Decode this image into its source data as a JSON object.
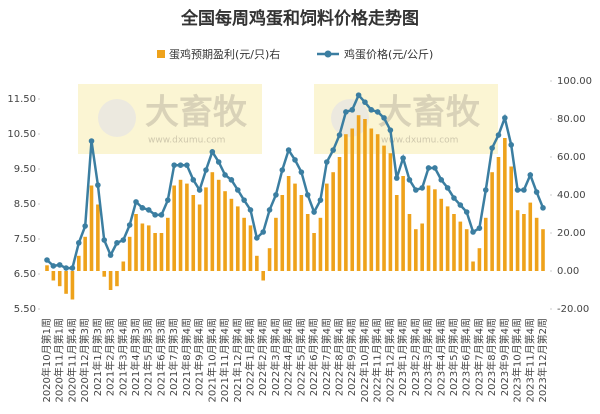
{
  "chart_data": {
    "type": "combo",
    "title": "全国每周鸡蛋和饲料价格走势图",
    "watermark": "大畜牧",
    "watermark_url": "www.dxumu.com",
    "categories": [
      "2020年10月第1周",
      null,
      "2020年11月第1周",
      null,
      "2020年11月第4周",
      null,
      "2020年12月第3周",
      null,
      "2021年1月第3周",
      null,
      "2021年2月第3周",
      null,
      "2021年3月第4周",
      null,
      "2021年4月第3周",
      null,
      "2021年5月第3周",
      null,
      "2021年6月第3周",
      null,
      "2021年7月第3周",
      null,
      "2021年8月第4周",
      null,
      "2021年9月第4周",
      null,
      "2021年10月第4周",
      null,
      "2021年11月第4周",
      null,
      "2021年12月第4周",
      null,
      "2022年1月第4周",
      null,
      "2022年2月第4周",
      null,
      "2022年3月第4周",
      null,
      "2022年4月第4周",
      null,
      "2022年5月第4周",
      null,
      "2022年6月第4周",
      null,
      "2022年7月第4周",
      null,
      "2022年8月第4周",
      null,
      "2022年9月第4周",
      null,
      "2022年10月第4周",
      null,
      "2022年11月第4周",
      null,
      "2022年12月第4周",
      null,
      "2023年1月第4周",
      null,
      "2023年2月第4周",
      null,
      "2023年3月第4周",
      null,
      "2023年4月第4周",
      null,
      "2023年5月第4周",
      null,
      "2023年6月第4周",
      null,
      "2023年7月第4周",
      null,
      "2023年8月第4周",
      null,
      "2023年9月第4周",
      null,
      "2023年10月第4周",
      null,
      "2023年11月第4周",
      null,
      "2023年12月第2周"
    ],
    "series": [
      {
        "name": "蛋鸡预期盈利(元/只)右",
        "type": "bar",
        "axis": "y2",
        "color": "#eea21b",
        "values": [
          3,
          -5,
          -8,
          -12,
          -15,
          8,
          18,
          45,
          35,
          -3,
          -10,
          -8,
          5,
          18,
          30,
          25,
          24,
          20,
          20,
          28,
          45,
          48,
          46,
          40,
          35,
          44,
          52,
          48,
          42,
          38,
          34,
          28,
          24,
          8,
          -5,
          12,
          28,
          40,
          50,
          46,
          40,
          30,
          20,
          28,
          46,
          52,
          60,
          72,
          75,
          82,
          80,
          75,
          72,
          66,
          62,
          40,
          50,
          30,
          22,
          25,
          45,
          43,
          38,
          34,
          30,
          26,
          22,
          5,
          12,
          28,
          52,
          60,
          70,
          55,
          32,
          30,
          36,
          28,
          22
        ]
      },
      {
        "name": "鸡蛋价格(元/公斤)",
        "type": "line",
        "axis": "y",
        "color": "#3b7ea1",
        "values": [
          6.9,
          6.73,
          6.76,
          6.67,
          6.67,
          7.39,
          7.87,
          10.3,
          9.04,
          7.47,
          7.04,
          7.39,
          7.47,
          7.9,
          8.56,
          8.39,
          8.33,
          8.19,
          8.19,
          8.61,
          9.61,
          9.61,
          9.61,
          9.19,
          8.9,
          9.47,
          9.99,
          9.7,
          9.33,
          9.19,
          8.9,
          8.61,
          8.33,
          7.53,
          7.7,
          8.33,
          8.76,
          9.47,
          10.04,
          9.76,
          9.41,
          8.76,
          8.27,
          8.61,
          9.7,
          10.04,
          10.47,
          11.13,
          11.19,
          11.61,
          11.41,
          11.19,
          11.13,
          10.96,
          10.61,
          9.24,
          9.81,
          9.19,
          8.9,
          8.96,
          9.53,
          9.53,
          9.19,
          8.96,
          8.67,
          8.47,
          8.27,
          7.7,
          7.81,
          8.9,
          10.1,
          10.47,
          10.96,
          10.19,
          8.9,
          8.9,
          9.33,
          8.84,
          8.39
        ]
      }
    ],
    "ylim": [
      5.5,
      11.5
    ],
    "yticks": [
      {
        "value": 5.5,
        "label": "5.50"
      },
      {
        "value": 6.5,
        "label": "6.50"
      },
      {
        "value": 7.5,
        "label": "7.50"
      },
      {
        "value": 8.5,
        "label": "8.50"
      },
      {
        "value": 9.5,
        "label": "9.50"
      },
      {
        "value": 10.5,
        "label": "10.50"
      },
      {
        "value": 11.5,
        "label": "11.50"
      }
    ],
    "y2lim": [
      -20,
      100
    ],
    "y2ticks": [
      {
        "value": -20,
        "label": "-20.00"
      },
      {
        "value": 0,
        "label": "0.00"
      },
      {
        "value": 20,
        "label": "20.00"
      },
      {
        "value": 40,
        "label": "40.00"
      },
      {
        "value": 60,
        "label": "60.00"
      },
      {
        "value": 80,
        "label": "80.00"
      },
      {
        "value": 100,
        "label": "100.00"
      }
    ]
  }
}
